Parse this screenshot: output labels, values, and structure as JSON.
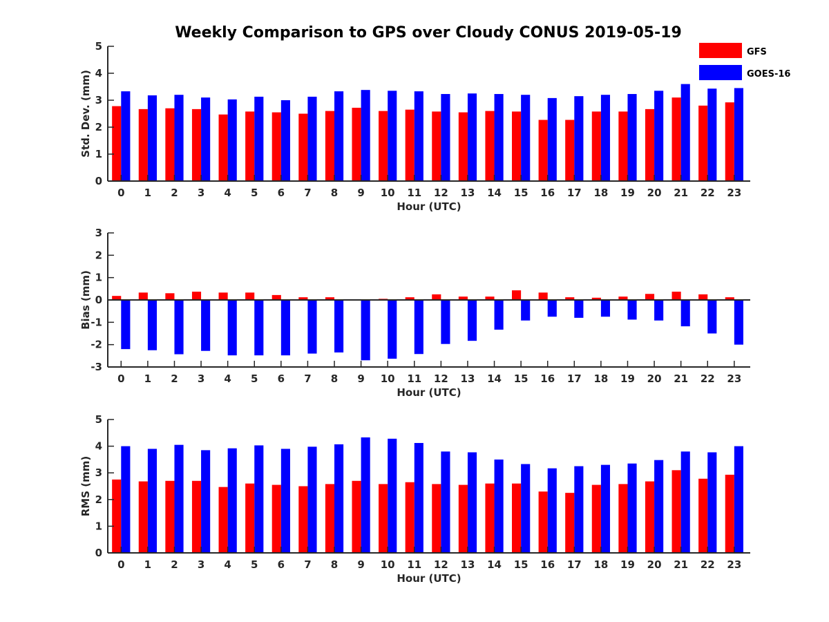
{
  "figure": {
    "title": "Weekly Comparison to GPS over Cloudy CONUS 2019-05-19"
  },
  "legend": {
    "location": "top-right",
    "entries": [
      {
        "label": "GFS",
        "color": "#ff0000"
      },
      {
        "label": "GOES-16",
        "color": "#0000ff"
      }
    ]
  },
  "chart_data": [
    {
      "type": "bar",
      "xlabel": "Hour (UTC)",
      "ylabel": "Std. Dev. (mm)",
      "ylim": [
        0,
        5
      ],
      "yticks": [
        0,
        1,
        2,
        3,
        4,
        5
      ],
      "categories": [
        "0",
        "1",
        "2",
        "3",
        "4",
        "5",
        "6",
        "7",
        "8",
        "9",
        "10",
        "11",
        "12",
        "13",
        "14",
        "15",
        "16",
        "17",
        "18",
        "19",
        "20",
        "21",
        "22",
        "23"
      ],
      "series": [
        {
          "name": "GFS",
          "color": "#ff0000",
          "values": [
            2.78,
            2.67,
            2.7,
            2.67,
            2.47,
            2.58,
            2.55,
            2.5,
            2.6,
            2.72,
            2.6,
            2.65,
            2.58,
            2.55,
            2.6,
            2.58,
            2.27,
            2.27,
            2.58,
            2.58,
            2.67,
            3.1,
            2.8,
            2.92
          ]
        },
        {
          "name": "GOES-16",
          "color": "#0000ff",
          "values": [
            3.33,
            3.18,
            3.2,
            3.1,
            3.03,
            3.13,
            3.0,
            3.13,
            3.33,
            3.38,
            3.35,
            3.33,
            3.23,
            3.25,
            3.23,
            3.2,
            3.08,
            3.15,
            3.2,
            3.23,
            3.35,
            3.6,
            3.43,
            3.45
          ]
        }
      ]
    },
    {
      "type": "bar",
      "xlabel": "Hour (UTC)",
      "ylabel": "Bias (mm)",
      "ylim": [
        -3,
        3
      ],
      "yticks": [
        -3,
        -2,
        -1,
        0,
        1,
        2,
        3
      ],
      "zero_line": true,
      "categories": [
        "0",
        "1",
        "2",
        "3",
        "4",
        "5",
        "6",
        "7",
        "8",
        "9",
        "10",
        "11",
        "12",
        "13",
        "14",
        "15",
        "16",
        "17",
        "18",
        "19",
        "20",
        "21",
        "22",
        "23"
      ],
      "series": [
        {
          "name": "GFS",
          "color": "#ff0000",
          "values": [
            0.18,
            0.33,
            0.3,
            0.37,
            0.33,
            0.33,
            0.22,
            0.12,
            0.12,
            0.0,
            0.05,
            0.12,
            0.25,
            0.15,
            0.15,
            0.43,
            0.33,
            0.12,
            0.1,
            0.15,
            0.27,
            0.37,
            0.25,
            0.12
          ]
        },
        {
          "name": "GOES-16",
          "color": "#0000ff",
          "values": [
            -2.2,
            -2.25,
            -2.43,
            -2.28,
            -2.48,
            -2.48,
            -2.48,
            -2.4,
            -2.35,
            -2.7,
            -2.63,
            -2.42,
            -1.97,
            -1.83,
            -1.33,
            -0.92,
            -0.75,
            -0.8,
            -0.75,
            -0.88,
            -0.92,
            -1.18,
            -1.5,
            -2.0
          ]
        }
      ]
    },
    {
      "type": "bar",
      "xlabel": "Hour (UTC)",
      "ylabel": "RMS (mm)",
      "ylim": [
        0,
        5
      ],
      "yticks": [
        0,
        1,
        2,
        3,
        4,
        5
      ],
      "categories": [
        "0",
        "1",
        "2",
        "3",
        "4",
        "5",
        "6",
        "7",
        "8",
        "9",
        "10",
        "11",
        "12",
        "13",
        "14",
        "15",
        "16",
        "17",
        "18",
        "19",
        "20",
        "21",
        "22",
        "23"
      ],
      "series": [
        {
          "name": "GFS",
          "color": "#ff0000",
          "values": [
            2.75,
            2.68,
            2.7,
            2.7,
            2.47,
            2.6,
            2.55,
            2.5,
            2.58,
            2.7,
            2.58,
            2.65,
            2.58,
            2.55,
            2.6,
            2.6,
            2.3,
            2.25,
            2.55,
            2.58,
            2.68,
            3.1,
            2.78,
            2.93
          ]
        },
        {
          "name": "GOES-16",
          "color": "#0000ff",
          "values": [
            4.0,
            3.9,
            4.05,
            3.85,
            3.92,
            4.03,
            3.9,
            3.98,
            4.07,
            4.33,
            4.28,
            4.12,
            3.8,
            3.77,
            3.5,
            3.33,
            3.17,
            3.25,
            3.3,
            3.35,
            3.48,
            3.8,
            3.77,
            4.0
          ]
        }
      ]
    }
  ]
}
